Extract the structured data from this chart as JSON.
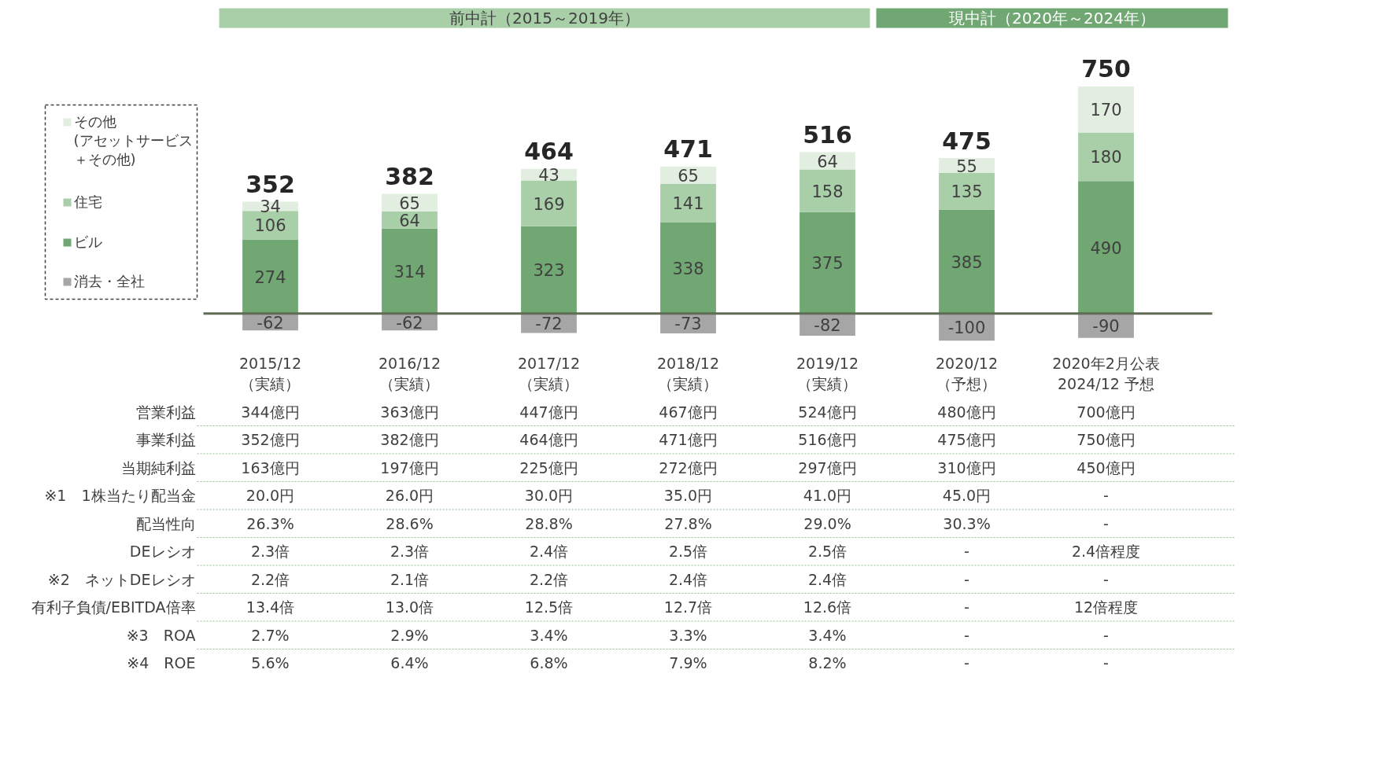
{
  "chart_data": {
    "type": "bar",
    "stacked": true,
    "data_labels": true,
    "legend": "left",
    "grid": false,
    "categories": [
      "2015/12\n（実績）",
      "2016/12\n（実績）",
      "2017/12\n（実績）",
      "2018/12\n（実績）",
      "2019/12\n（実績）",
      "2020/12\n（予想）",
      "2020年2月公表\n2024/12 予想"
    ],
    "series": [
      {
        "name": "ビル",
        "color": "#70a773",
        "values": [
          274,
          314,
          323,
          338,
          375,
          385,
          490
        ]
      },
      {
        "name": "住宅",
        "color": "#a9cfa8",
        "values": [
          106,
          64,
          169,
          141,
          158,
          135,
          180
        ]
      },
      {
        "name": "その他(アセットサービス＋その他)",
        "color": "#e2efe0",
        "values": [
          34,
          65,
          43,
          65,
          64,
          55,
          170
        ]
      },
      {
        "name": "消去・全社",
        "color": "#a6a6a6",
        "values": [
          -62,
          -62,
          -72,
          -73,
          -82,
          -100,
          -90
        ]
      }
    ],
    "totals": [
      "352",
      "382",
      "464",
      "471",
      "516",
      "475",
      "750"
    ],
    "annotations": [
      "前中計（2015～2019年）",
      "現中計（2020年～2024年）",
      "営業利益",
      "344億円",
      "363億円",
      "447億円",
      "467億円",
      "524億円",
      "480億円",
      "700億円",
      "事業利益",
      "352億円",
      "382億円",
      "464億円",
      "471億円",
      "516億円",
      "475億円",
      "750億円",
      "当期純利益",
      "163億円",
      "197億円",
      "225億円",
      "272億円",
      "297億円",
      "310億円",
      "450億円",
      "※1　1株当たり配当金",
      "20.0円",
      "26.0円",
      "30.0円",
      "35.0円",
      "41.0円",
      "45.0円",
      "-",
      "配当性向",
      "26.3%",
      "28.6%",
      "28.8%",
      "27.8%",
      "29.0%",
      "30.3%",
      "-",
      "DEレシオ",
      "2.3倍",
      "2.3倍",
      "2.4倍",
      "2.5倍",
      "2.5倍",
      "-",
      "2.4倍程度",
      "※2　ネットDEレシオ",
      "2.2倍",
      "2.1倍",
      "2.2倍",
      "2.4倍",
      "2.4倍",
      "-",
      "-",
      "有利子負債/EBITDA倍率",
      "13.4倍",
      "13.0倍",
      "12.5倍",
      "12.7倍",
      "12.6倍",
      "-",
      "12倍程度",
      "※3　ROA",
      "2.7%",
      "2.9%",
      "3.4%",
      "3.3%",
      "3.4%",
      "-",
      "-",
      "※4　ROE",
      "5.6%",
      "6.4%",
      "6.8%",
      "7.9%",
      "8.2%",
      "-",
      "-"
    ]
  }
}
